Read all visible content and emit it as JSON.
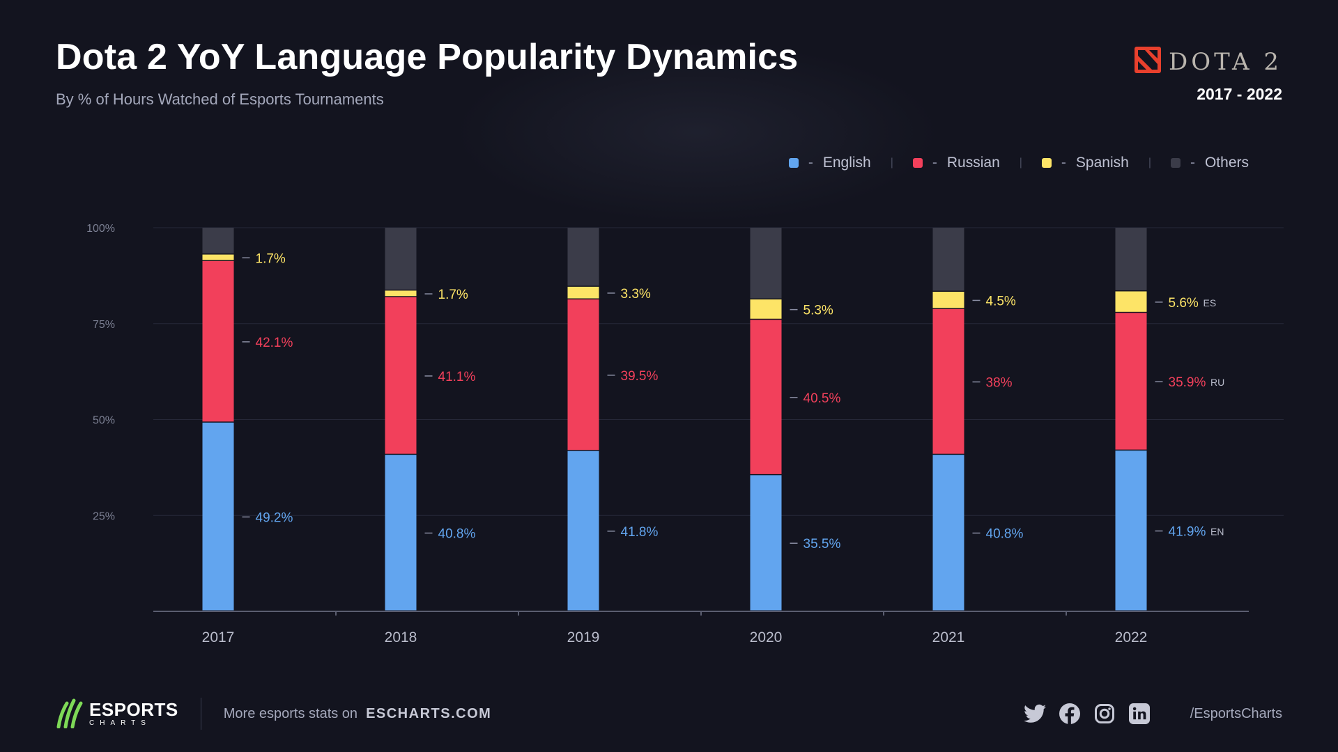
{
  "header": {
    "title": "Dota 2 YoY Language Popularity Dynamics",
    "subtitle": "By % of Hours Watched of Esports Tournaments",
    "brand_name": "DOTA 2",
    "years_range": "2017 - 2022"
  },
  "legend": [
    {
      "label": "English",
      "color": "#62a5ef",
      "dash": "-"
    },
    {
      "label": "Russian",
      "color": "#f2405b",
      "dash": "-"
    },
    {
      "label": "Spanish",
      "color": "#fde467",
      "dash": "-"
    },
    {
      "label": "Others",
      "color": "#3b3c49",
      "dash": "-"
    }
  ],
  "legend_separator": "|",
  "chart_data": {
    "type": "bar",
    "stacked": true,
    "title": "Dota 2 YoY Language Popularity Dynamics",
    "subtitle": "By % of Hours Watched of Esports Tournaments",
    "xlabel": "",
    "ylabel": "",
    "ylim": [
      0,
      100
    ],
    "yticks": [
      "25%",
      "50%",
      "75%",
      "100%"
    ],
    "ytick_values": [
      25,
      50,
      75,
      100
    ],
    "categories": [
      "2017",
      "2018",
      "2019",
      "2020",
      "2021",
      "2022"
    ],
    "series": [
      {
        "name": "English",
        "code": "EN",
        "color": "#62a5ef",
        "values": [
          49.2,
          40.8,
          41.8,
          35.5,
          40.8,
          41.9
        ],
        "labels": [
          "49.2%",
          "40.8%",
          "41.8%",
          "35.5%",
          "40.8%",
          "41.9%"
        ]
      },
      {
        "name": "Russian",
        "code": "RU",
        "color": "#f2405b",
        "values": [
          42.1,
          41.1,
          39.5,
          40.5,
          38,
          35.9
        ],
        "labels": [
          "42.1%",
          "41.1%",
          "39.5%",
          "40.5%",
          "38%",
          "35.9%"
        ]
      },
      {
        "name": "Spanish",
        "code": "ES",
        "color": "#fde467",
        "values": [
          1.7,
          1.7,
          3.3,
          5.3,
          4.5,
          5.6
        ],
        "labels": [
          "1.7%",
          "1.7%",
          "3.3%",
          "5.3%",
          "4.5%",
          "5.6%"
        ]
      },
      {
        "name": "Others",
        "code": "",
        "color": "#3b3c49",
        "values": [
          7.0,
          16.4,
          15.4,
          18.7,
          16.7,
          16.6
        ],
        "labels": [
          "",
          "",
          "",
          "",
          "",
          ""
        ]
      }
    ],
    "label_dash": "—",
    "last_bar_codes": [
      "EN",
      "RU",
      "ES"
    ],
    "grid": true
  },
  "footer": {
    "logo_main": "ESPORTS",
    "logo_sub": "CHARTS",
    "text": "More esports stats on",
    "link": "ESCHARTS.COM",
    "handle": "/EsportsCharts"
  },
  "socials": [
    "twitter-icon",
    "facebook-icon",
    "instagram-icon",
    "linkedin-icon"
  ],
  "colors": {
    "background": "#13141f",
    "axis": "#5b5e70",
    "grid": "#262838",
    "tick_text": "#7c8093",
    "year_text": "#b9bccb"
  }
}
